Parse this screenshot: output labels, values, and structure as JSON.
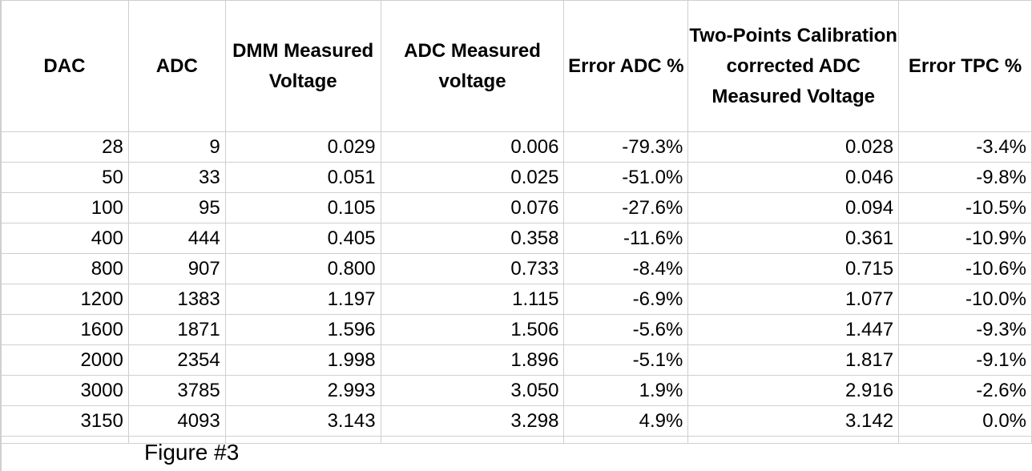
{
  "table": {
    "headers": [
      "DAC",
      "ADC",
      "DMM Measured Voltage",
      "ADC Measured voltage",
      "Error ADC %",
      "Two-Points Calibration corrected ADC Measured Voltage",
      "Error TPC %"
    ],
    "rows": [
      [
        "28",
        "9",
        "0.029",
        "0.006",
        "-79.3%",
        "0.028",
        "-3.4%"
      ],
      [
        "50",
        "33",
        "0.051",
        "0.025",
        "-51.0%",
        "0.046",
        "-9.8%"
      ],
      [
        "100",
        "95",
        "0.105",
        "0.076",
        "-27.6%",
        "0.094",
        "-10.5%"
      ],
      [
        "400",
        "444",
        "0.405",
        "0.358",
        "-11.6%",
        "0.361",
        "-10.9%"
      ],
      [
        "800",
        "907",
        "0.800",
        "0.733",
        "-8.4%",
        "0.715",
        "-10.6%"
      ],
      [
        "1200",
        "1383",
        "1.197",
        "1.115",
        "-6.9%",
        "1.077",
        "-10.0%"
      ],
      [
        "1600",
        "1871",
        "1.596",
        "1.506",
        "-5.6%",
        "1.447",
        "-9.3%"
      ],
      [
        "2000",
        "2354",
        "1.998",
        "1.896",
        "-5.1%",
        "1.817",
        "-9.1%"
      ],
      [
        "3000",
        "3785",
        "2.993",
        "3.050",
        "1.9%",
        "2.916",
        "-2.6%"
      ],
      [
        "3150",
        "4093",
        "3.143",
        "3.298",
        "4.9%",
        "3.142",
        "0.0%"
      ]
    ]
  },
  "caption": "Figure #3",
  "colors": {
    "grid": "#cfcfcf",
    "text": "#000000",
    "background": "#ffffff"
  }
}
